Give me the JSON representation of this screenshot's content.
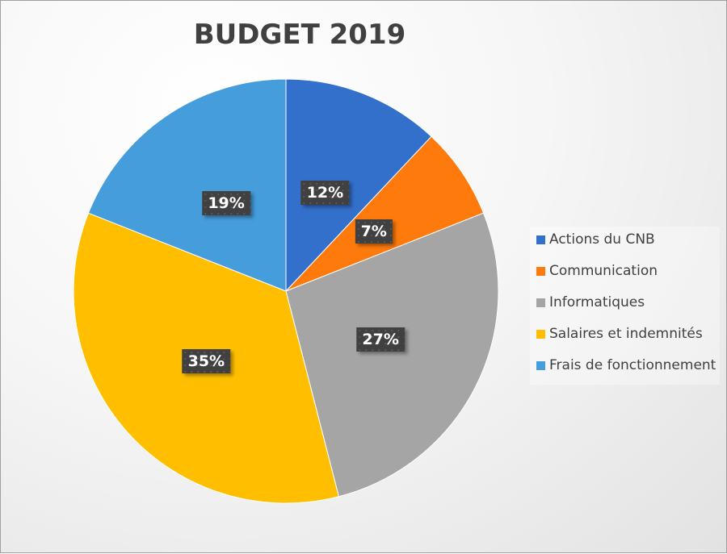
{
  "chart_data": {
    "type": "pie",
    "title": "BUDGET 2019",
    "slices": [
      {
        "label": "Actions du CNB",
        "value": 12,
        "data_label": "12%",
        "color": "#3370cc"
      },
      {
        "label": "Communication",
        "value": 7,
        "data_label": "7%",
        "color": "#ff7a0c"
      },
      {
        "label": "Informatiques",
        "value": 27,
        "data_label": "27%",
        "color": "#a5a5a5"
      },
      {
        "label": "Salaires et indemnités",
        "value": 35,
        "data_label": "35%",
        "color": "#ffbf00"
      },
      {
        "label": "Frais de fonctionnement",
        "value": 19,
        "data_label": "19%",
        "color": "#459ddb"
      }
    ],
    "start_angle": "12 o'clock",
    "direction": "clockwise",
    "legend_position": "right"
  }
}
